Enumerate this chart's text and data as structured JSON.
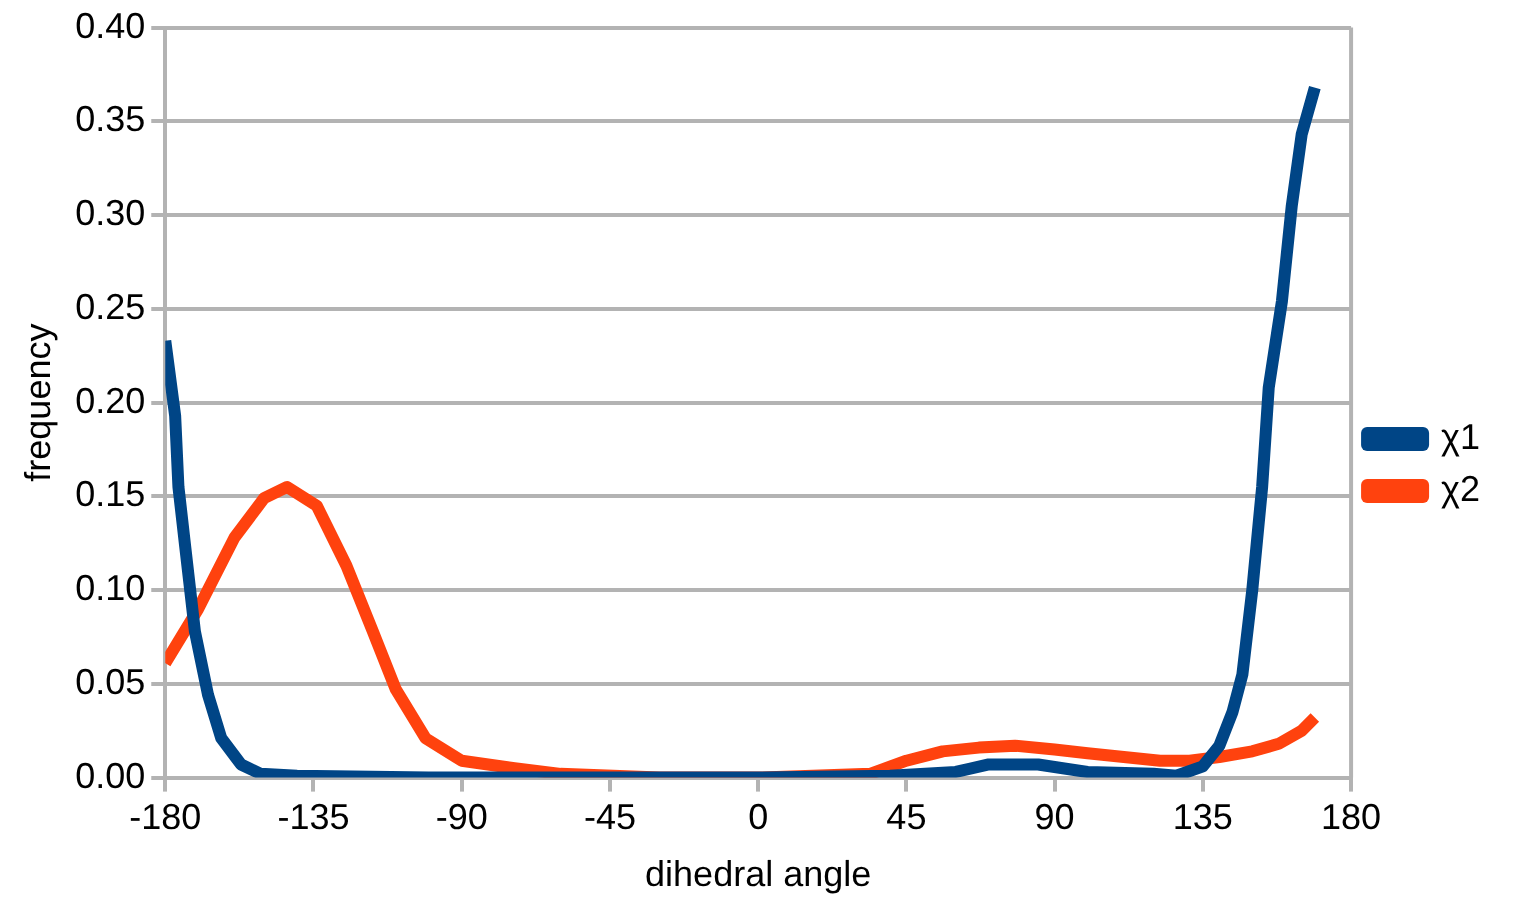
{
  "chart_data": {
    "type": "line",
    "xlabel": "dihedral angle",
    "ylabel": "frequency",
    "xlim": [
      -180,
      180
    ],
    "xticks": [
      -180,
      -135,
      -90,
      -45,
      0,
      45,
      90,
      135,
      180
    ],
    "ylim": [
      0,
      0.4
    ],
    "yticks": [
      {
        "value": 0,
        "label": "0.00"
      },
      {
        "value": 0.05,
        "label": "0.05"
      },
      {
        "value": 0.1,
        "label": "0.10"
      },
      {
        "value": 0.15,
        "label": "0.15"
      },
      {
        "value": 0.2,
        "label": "0.20"
      },
      {
        "value": 0.25,
        "label": "0.25"
      },
      {
        "value": 0.3,
        "label": "0.30"
      },
      {
        "value": 0.35,
        "label": "0.35"
      },
      {
        "value": 0.4,
        "label": "0.40"
      }
    ],
    "grid": "y",
    "legend": "right",
    "marker": "none",
    "line_style": "solid",
    "series": [
      {
        "name": "χ1",
        "color": "#004586",
        "x": [
          -180,
          -177,
          -176,
          -174,
          -171,
          -167,
          -163,
          -157,
          -151,
          -140,
          -100,
          -50,
          0,
          40,
          60,
          70,
          85,
          100,
          120,
          127,
          135,
          140,
          144,
          147,
          150,
          153,
          155,
          159,
          162,
          165,
          169
        ],
        "values": [
          0.233,
          0.193,
          0.155,
          0.124,
          0.078,
          0.044,
          0.021,
          0.007,
          0.002,
          0.001,
          0,
          0,
          0,
          0.001,
          0.003,
          0.007,
          0.007,
          0.003,
          0.002,
          0.001,
          0.006,
          0.017,
          0.035,
          0.055,
          0.1,
          0.155,
          0.208,
          0.254,
          0.305,
          0.343,
          0.368
        ]
      },
      {
        "name": "χ2",
        "color": "#ff420e",
        "x": [
          -180,
          -170,
          -159,
          -150,
          -143,
          -134,
          -125,
          -117,
          -110,
          -101,
          -90,
          -74,
          -60,
          -30,
          0,
          34,
          45,
          56,
          67,
          78,
          90,
          100,
          111,
          122,
          131,
          140,
          150,
          158,
          165,
          169
        ],
        "values": [
          0.061,
          0.09,
          0.128,
          0.149,
          0.155,
          0.145,
          0.113,
          0.078,
          0.047,
          0.021,
          0.009,
          0.005,
          0.002,
          0,
          0,
          0.002,
          0.009,
          0.014,
          0.016,
          0.017,
          0.015,
          0.013,
          0.011,
          0.009,
          0.009,
          0.011,
          0.014,
          0.018,
          0.025,
          0.032
        ]
      }
    ]
  }
}
